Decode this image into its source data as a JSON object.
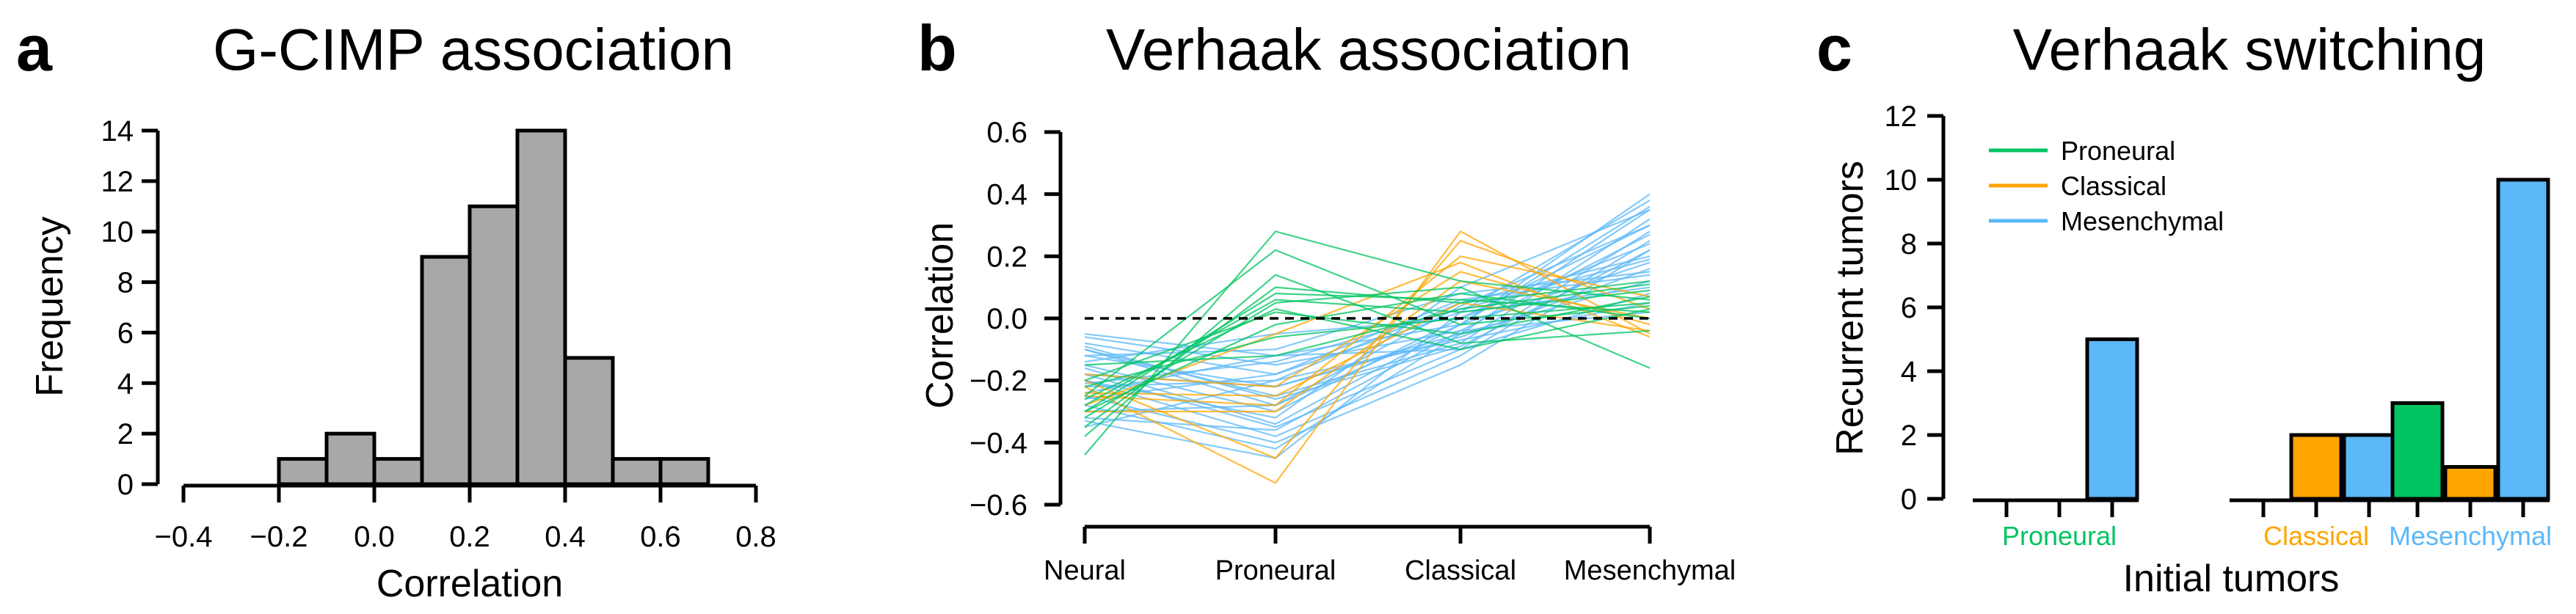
{
  "colors": {
    "bar_gray": "#a8a8a8",
    "proneural": "#00c462",
    "classical": "#ffa500",
    "mesenchymal": "#5cb8f8"
  },
  "chart_data": [
    {
      "panel": "a",
      "type": "bar",
      "title": "G-CIMP association",
      "xlabel": "Correlation",
      "ylabel": "Frequency",
      "xlim": [
        -0.4,
        0.8
      ],
      "ylim": [
        0,
        14
      ],
      "xticks": [
        -0.4,
        -0.2,
        0.0,
        0.2,
        0.4,
        0.6,
        0.8
      ],
      "xtick_labels": [
        "−0.4",
        "−0.2",
        "0.0",
        "0.2",
        "0.4",
        "0.6",
        "0.8"
      ],
      "yticks": [
        0,
        2,
        4,
        6,
        8,
        10,
        12,
        14
      ],
      "ytick_labels": [
        "0",
        "2",
        "4",
        "6",
        "8",
        "10",
        "12",
        "14"
      ],
      "bin_edges": [
        -0.2,
        -0.1,
        0.0,
        0.1,
        0.2,
        0.3,
        0.4,
        0.5,
        0.6,
        0.7
      ],
      "values": [
        1,
        2,
        1,
        9,
        11,
        14,
        5,
        1,
        1
      ]
    },
    {
      "panel": "b",
      "type": "line",
      "title": "Verhaak association",
      "xlabel": "",
      "ylabel": "Correlation",
      "categories": [
        "Neural",
        "Proneural",
        "Classical",
        "Mesenchymal"
      ],
      "ylim": [
        -0.6,
        0.6
      ],
      "yticks": [
        -0.6,
        -0.4,
        -0.2,
        0.0,
        0.2,
        0.4,
        0.6
      ],
      "ytick_labels": [
        "−0.6",
        "−0.4",
        "−0.2",
        "0.0",
        "0.2",
        "0.4",
        "0.6"
      ],
      "reference_line": 0,
      "series": [
        {
          "group": "proneural",
          "values": [
            -0.44,
            0.28,
            0.12,
            0.06
          ]
        },
        {
          "group": "proneural",
          "values": [
            -0.25,
            0.22,
            -0.02,
            0.04
          ]
        },
        {
          "group": "proneural",
          "values": [
            -0.35,
            0.1,
            0.05,
            0.12
          ]
        },
        {
          "group": "proneural",
          "values": [
            -0.3,
            0.08,
            0.06,
            0.02
          ]
        },
        {
          "group": "proneural",
          "values": [
            -0.28,
            0.06,
            0.02,
            0.09
          ]
        },
        {
          "group": "proneural",
          "values": [
            -0.32,
            0.05,
            0.1,
            -0.16
          ]
        },
        {
          "group": "proneural",
          "values": [
            -0.2,
            0.02,
            -0.05,
            0.07
          ]
        },
        {
          "group": "proneural",
          "values": [
            -0.22,
            -0.06,
            0.0,
            0.05
          ]
        },
        {
          "group": "proneural",
          "values": [
            -0.15,
            -0.12,
            0.03,
            0.11
          ]
        },
        {
          "group": "proneural",
          "values": [
            -0.38,
            0.14,
            -0.08,
            -0.04
          ]
        },
        {
          "group": "proneural",
          "values": [
            -0.26,
            0.03,
            -0.1,
            0.03
          ]
        },
        {
          "group": "proneural",
          "values": [
            -0.3,
            -0.02,
            0.08,
            0.0
          ]
        },
        {
          "group": "classical",
          "values": [
            -0.22,
            -0.53,
            0.28,
            -0.05
          ]
        },
        {
          "group": "classical",
          "values": [
            -0.2,
            -0.45,
            0.25,
            0.03
          ]
        },
        {
          "group": "classical",
          "values": [
            -0.25,
            -0.28,
            0.2,
            0.07
          ]
        },
        {
          "group": "classical",
          "values": [
            -0.18,
            -0.22,
            0.15,
            -0.02
          ]
        },
        {
          "group": "classical",
          "values": [
            -0.3,
            -0.3,
            0.12,
            0.0
          ]
        },
        {
          "group": "classical",
          "values": [
            -0.24,
            -0.25,
            0.05,
            -0.04
          ]
        },
        {
          "group": "classical",
          "values": [
            -0.28,
            -0.05,
            0.18,
            -0.06
          ]
        },
        {
          "group": "mesenchymal",
          "values": [
            -0.05,
            -0.12,
            -0.02,
            0.4
          ]
        },
        {
          "group": "mesenchymal",
          "values": [
            -0.08,
            -0.18,
            0.02,
            0.38
          ]
        },
        {
          "group": "mesenchymal",
          "values": [
            -0.12,
            -0.22,
            -0.05,
            0.35
          ]
        },
        {
          "group": "mesenchymal",
          "values": [
            -0.1,
            -0.25,
            -0.08,
            0.32
          ]
        },
        {
          "group": "mesenchymal",
          "values": [
            -0.15,
            -0.3,
            0.0,
            0.3
          ]
        },
        {
          "group": "mesenchymal",
          "values": [
            -0.18,
            -0.35,
            -0.1,
            0.28
          ]
        },
        {
          "group": "mesenchymal",
          "values": [
            -0.2,
            -0.38,
            -0.12,
            0.25
          ]
        },
        {
          "group": "mesenchymal",
          "values": [
            -0.25,
            -0.4,
            -0.15,
            0.22
          ]
        },
        {
          "group": "mesenchymal",
          "values": [
            -0.22,
            -0.2,
            0.05,
            0.2
          ]
        },
        {
          "group": "mesenchymal",
          "values": [
            -0.3,
            -0.28,
            -0.02,
            0.18
          ]
        },
        {
          "group": "mesenchymal",
          "values": [
            -0.12,
            -0.1,
            0.08,
            0.15
          ]
        },
        {
          "group": "mesenchymal",
          "values": [
            -0.28,
            -0.42,
            -0.05,
            0.12
          ]
        },
        {
          "group": "mesenchymal",
          "values": [
            -0.33,
            -0.45,
            0.02,
            0.1
          ]
        },
        {
          "group": "mesenchymal",
          "values": [
            -0.06,
            -0.15,
            -0.04,
            0.27
          ]
        },
        {
          "group": "mesenchymal",
          "values": [
            -0.2,
            -0.32,
            0.1,
            0.35
          ]
        },
        {
          "group": "mesenchymal",
          "values": [
            -0.35,
            -0.2,
            -0.07,
            0.05
          ]
        },
        {
          "group": "mesenchymal",
          "values": [
            -0.14,
            -0.05,
            0.0,
            0.24
          ]
        },
        {
          "group": "mesenchymal",
          "values": [
            -0.24,
            -0.12,
            -0.1,
            0.08
          ]
        },
        {
          "group": "mesenchymal",
          "values": [
            -0.1,
            -0.28,
            0.04,
            0.3
          ]
        },
        {
          "group": "mesenchymal",
          "values": [
            -0.18,
            -0.22,
            -0.06,
            0.16
          ]
        },
        {
          "group": "mesenchymal",
          "values": [
            -0.16,
            -0.34,
            -0.02,
            0.36
          ]
        },
        {
          "group": "mesenchymal",
          "values": [
            -0.26,
            -0.18,
            0.06,
            0.14
          ]
        },
        {
          "group": "mesenchymal",
          "values": [
            -0.09,
            -0.26,
            -0.09,
            0.22
          ]
        },
        {
          "group": "mesenchymal",
          "values": [
            -0.32,
            -0.36,
            -0.04,
            0.02
          ]
        },
        {
          "group": "mesenchymal",
          "values": [
            -0.21,
            -0.14,
            0.03,
            0.19
          ]
        }
      ]
    },
    {
      "panel": "c",
      "type": "bar",
      "title": "Verhaak switching",
      "xlabel": "Initial tumors",
      "ylabel": "Recurrent tumors",
      "ylim": [
        0,
        12
      ],
      "yticks": [
        0,
        2,
        4,
        6,
        8,
        10,
        12
      ],
      "ytick_labels": [
        "0",
        "2",
        "4",
        "6",
        "8",
        "10",
        "12"
      ],
      "categories": [
        "Proneural",
        "Classical",
        "Mesenchymal"
      ],
      "series": [
        {
          "name": "Proneural",
          "values": [
            0,
            0,
            3
          ]
        },
        {
          "name": "Classical",
          "values": [
            0,
            2,
            1
          ]
        },
        {
          "name": "Mesenchymal",
          "values": [
            5,
            2,
            10
          ]
        }
      ],
      "legend": [
        "Proneural",
        "Classical",
        "Mesenchymal"
      ],
      "legend_position": "top-left"
    }
  ],
  "panel_labels": [
    "a",
    "b",
    "c"
  ]
}
